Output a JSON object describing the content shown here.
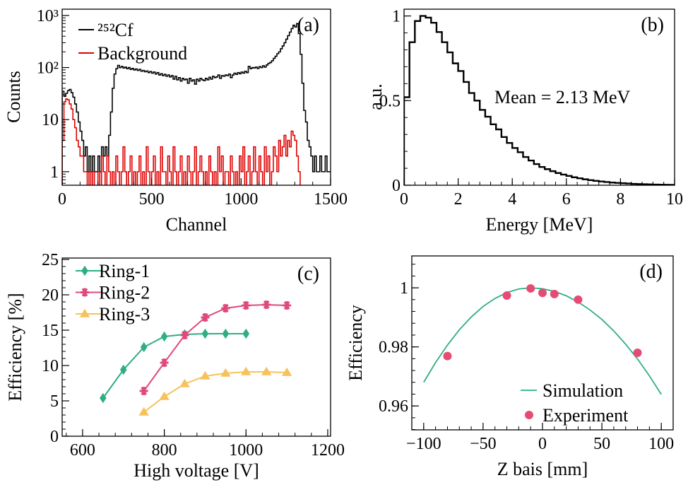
{
  "chart_data": [
    {
      "panel_label": "(a)",
      "type": "histogram",
      "xlabel": "Channel",
      "ylabel": "Counts",
      "xlim": [
        0,
        1500
      ],
      "ylim": [
        0.55,
        1320
      ],
      "yscale": "log",
      "grid": false,
      "legend": "top-left",
      "xticks": [
        {
          "value": 0,
          "label": "0"
        },
        {
          "value": 500,
          "label": "500"
        },
        {
          "value": 1000,
          "label": "1000"
        },
        {
          "value": 1500,
          "label": "1500"
        }
      ],
      "yticks": [
        {
          "value": 1,
          "label": "1"
        },
        {
          "value": 10,
          "label": "10"
        },
        {
          "value": 100,
          "label": "10²"
        },
        {
          "value": 1000,
          "label": "10³"
        }
      ],
      "bin_width": 10,
      "series": [
        {
          "name": "²⁵²Cf",
          "color": "#000000",
          "values": [
            35,
            28,
            32,
            36,
            38,
            33,
            27,
            20,
            14,
            9,
            6,
            4,
            2,
            3,
            1,
            2,
            1,
            2,
            1,
            1,
            2,
            1,
            3,
            2,
            3,
            2,
            5,
            14,
            40,
            75,
            95,
            110,
            100,
            105,
            98,
            102,
            95,
            100,
            92,
            96,
            90,
            94,
            88,
            92,
            85,
            88,
            83,
            86,
            80,
            84,
            78,
            82,
            75,
            80,
            72,
            76,
            70,
            74,
            68,
            72,
            66,
            70,
            60,
            68,
            58,
            64,
            55,
            62,
            58,
            60,
            50,
            62,
            55,
            58,
            48,
            60,
            55,
            62,
            58,
            56,
            62,
            58,
            65,
            60,
            68,
            64,
            66,
            72,
            62,
            70,
            68,
            72,
            70,
            75,
            64,
            72,
            78,
            74,
            80,
            76,
            82,
            78,
            85,
            80,
            105,
            95,
            100,
            98,
            102,
            96,
            104,
            100,
            108,
            102,
            112,
            120,
            125,
            135,
            150,
            165,
            185,
            200,
            230,
            260,
            300,
            350,
            410,
            480,
            560,
            650,
            600,
            700,
            450,
            180,
            50,
            15,
            9,
            4,
            3,
            2,
            1,
            2,
            1,
            1,
            2,
            1,
            1,
            2,
            1,
            1
          ]
        },
        {
          "name": "Background",
          "color": "#e00000",
          "values": [
            4,
            22,
            25,
            24,
            20,
            16,
            10,
            7,
            4,
            3,
            2,
            2,
            1,
            1,
            0,
            1,
            0,
            1,
            0,
            0,
            1,
            0,
            2,
            1,
            0,
            2,
            1,
            0,
            1,
            0,
            2,
            1,
            0,
            1,
            3,
            1,
            0,
            1,
            2,
            0,
            1,
            0,
            1,
            2,
            0,
            1,
            0,
            3,
            1,
            0,
            1,
            2,
            0,
            1,
            0,
            3,
            1,
            1,
            0,
            2,
            1,
            0,
            3,
            1,
            0,
            1,
            2,
            0,
            1,
            0,
            2,
            1,
            0,
            1,
            3,
            0,
            1,
            2,
            1,
            0,
            1,
            0,
            2,
            1,
            0,
            1,
            0,
            3,
            1,
            2,
            0,
            1,
            1,
            0,
            2,
            1,
            0,
            1,
            0,
            2,
            1,
            3,
            0,
            1,
            2,
            0,
            1,
            3,
            1,
            0,
            2,
            1,
            0,
            3,
            1,
            2,
            0,
            1,
            3,
            2,
            1,
            4,
            2,
            3,
            5,
            2,
            4,
            3,
            6,
            5,
            4,
            2,
            1,
            0,
            0,
            0,
            0,
            0,
            0,
            0,
            0,
            0,
            0,
            0,
            0,
            0,
            0,
            0,
            0,
            0
          ]
        }
      ]
    },
    {
      "panel_label": "(b)",
      "type": "histogram",
      "xlabel": "Energy [MeV]",
      "ylabel": "a.u.",
      "xlim": [
        0,
        10
      ],
      "ylim": [
        0,
        1.04
      ],
      "yscale": "linear",
      "grid": false,
      "annotation": "Mean = 2.13 MeV",
      "xticks": [
        {
          "value": 0,
          "label": "0"
        },
        {
          "value": 2,
          "label": "2"
        },
        {
          "value": 4,
          "label": "4"
        },
        {
          "value": 6,
          "label": "6"
        },
        {
          "value": 8,
          "label": "8"
        },
        {
          "value": 10,
          "label": "10"
        }
      ],
      "yticks": [
        {
          "value": 0,
          "label": "0"
        },
        {
          "value": 0.5,
          "label": "0.5"
        },
        {
          "value": 1,
          "label": "1"
        }
      ],
      "bin_width": 0.2,
      "series": [
        {
          "color": "#000000",
          "values": [
            0.52,
            0.845,
            0.97,
            1.0,
            0.99,
            0.96,
            0.905,
            0.845,
            0.785,
            0.72,
            0.675,
            0.61,
            0.545,
            0.5,
            0.445,
            0.405,
            0.36,
            0.33,
            0.285,
            0.25,
            0.22,
            0.195,
            0.167,
            0.146,
            0.125,
            0.108,
            0.095,
            0.083,
            0.072,
            0.063,
            0.055,
            0.047,
            0.041,
            0.035,
            0.03,
            0.026,
            0.022,
            0.019,
            0.016,
            0.014,
            0.012,
            0.01,
            0.008,
            0.007,
            0.006,
            0.005,
            0.004,
            0.0035,
            0.003,
            0.0025
          ]
        }
      ]
    },
    {
      "panel_label": "(c)",
      "type": "line",
      "xlabel": "High voltage [V]",
      "ylabel": "Efficiency [%]",
      "xlim": [
        550,
        1207
      ],
      "ylim": [
        0,
        25.2
      ],
      "grid": false,
      "legend": "top-left",
      "xticks": [
        {
          "value": 600,
          "label": "600"
        },
        {
          "value": 800,
          "label": "800"
        },
        {
          "value": 1000,
          "label": "1000"
        },
        {
          "value": 1200,
          "label": "1200"
        }
      ],
      "yticks": [
        {
          "value": 0,
          "label": "0"
        },
        {
          "value": 5,
          "label": "5"
        },
        {
          "value": 10,
          "label": "10"
        },
        {
          "value": 15,
          "label": "15"
        },
        {
          "value": 20,
          "label": "20"
        },
        {
          "value": 25,
          "label": "25"
        }
      ],
      "series": [
        {
          "name": "Ring-1",
          "color": "#2fae86",
          "marker": "diamond",
          "x": [
            650,
            700,
            750,
            800,
            850,
            900,
            950,
            1000
          ],
          "y": [
            5.4,
            9.4,
            12.6,
            14.1,
            14.4,
            14.5,
            14.5,
            14.5
          ]
        },
        {
          "name": "Ring-2",
          "color": "#df4a7a",
          "marker": "star",
          "x": [
            750,
            800,
            850,
            900,
            950,
            1000,
            1050,
            1100
          ],
          "y": [
            6.4,
            10.4,
            14.3,
            16.8,
            18.1,
            18.5,
            18.6,
            18.5
          ]
        },
        {
          "name": "Ring-3",
          "color": "#f6c25c",
          "marker": "triangle",
          "x": [
            750,
            800,
            850,
            900,
            950,
            1000,
            1050,
            1100
          ],
          "y": [
            3.4,
            5.6,
            7.4,
            8.5,
            8.9,
            9.1,
            9.1,
            9.0
          ]
        }
      ]
    },
    {
      "panel_label": "(d)",
      "type": "scatter",
      "xlabel": "Z bais [mm]",
      "ylabel": "Efficiency",
      "xlim": [
        -110,
        110
      ],
      "ylim": [
        0.9519,
        1.0108
      ],
      "grid": false,
      "legend": "bottom-right",
      "xticks": [
        {
          "value": -100,
          "label": "−100"
        },
        {
          "value": -50,
          "label": "−50"
        },
        {
          "value": 0,
          "label": "0"
        },
        {
          "value": 50,
          "label": "50"
        },
        {
          "value": 100,
          "label": "100"
        }
      ],
      "yticks": [
        {
          "value": 0.96,
          "label": "0.96"
        },
        {
          "value": 0.98,
          "label": "0.98"
        },
        {
          "value": 1,
          "label": "1"
        }
      ],
      "series": [
        {
          "name": "Simulation",
          "color": "#2fae86",
          "kind": "line",
          "x": [
            -100,
            -90,
            -80,
            -70,
            -60,
            -50,
            -40,
            -30,
            -20,
            -10,
            0,
            10,
            20,
            30,
            40,
            50,
            60,
            70,
            80,
            90,
            100
          ],
          "y": [
            0.968,
            0.9747,
            0.9806,
            0.9858,
            0.9901,
            0.9937,
            0.9964,
            0.9984,
            0.9996,
            1.0,
            0.9997,
            0.9988,
            0.9973,
            0.9952,
            0.9925,
            0.9893,
            0.9854,
            0.9809,
            0.9759,
            0.9702,
            0.9639
          ]
        },
        {
          "name": "Experiment",
          "color": "#e64b74",
          "kind": "points",
          "x": [
            -80,
            -30,
            -10,
            0,
            10,
            30,
            80
          ],
          "y": [
            0.9769,
            0.9974,
            0.9998,
            0.9983,
            0.9979,
            0.996,
            0.978
          ]
        }
      ]
    }
  ]
}
